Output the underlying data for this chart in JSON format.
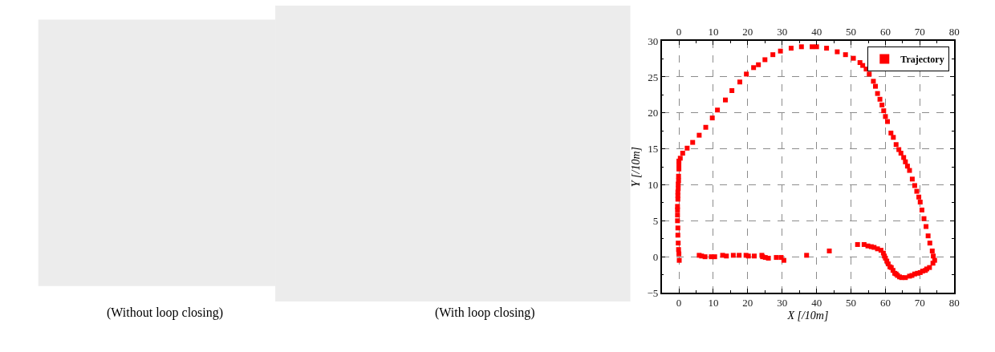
{
  "chart_data": [
    {
      "type": "other",
      "annotations": [
        "(Without loop closing)"
      ]
    },
    {
      "type": "other",
      "annotations": [
        "(With loop closing)"
      ]
    },
    {
      "type": "scatter",
      "xlabel": "X [/10m]",
      "ylabel": "Y [/10m]",
      "xlim": [
        -5,
        80
      ],
      "xticks": [
        0,
        {
          "value": 5,
          "label": null
        },
        10,
        {
          "value": 15,
          "label": null
        },
        20,
        {
          "value": 25,
          "label": null
        },
        30,
        {
          "value": 35,
          "label": null
        },
        40,
        {
          "value": 45,
          "label": null
        },
        50,
        {
          "value": 55,
          "label": null
        },
        60,
        {
          "value": 65,
          "label": null
        },
        70,
        {
          "value": 75,
          "label": null
        },
        80
      ],
      "x2lim": [
        -5,
        80
      ],
      "x2ticks": [
        0,
        {
          "value": 5,
          "label": null
        },
        10,
        {
          "value": 15,
          "label": null
        },
        20,
        {
          "value": 25,
          "label": null
        },
        30,
        {
          "value": 35,
          "label": null
        },
        40,
        {
          "value": 45,
          "label": null
        },
        50,
        {
          "value": 55,
          "label": null
        },
        60,
        {
          "value": 65,
          "label": null
        },
        70,
        {
          "value": 75,
          "label": null
        },
        80
      ],
      "ylim": [
        -5,
        30
      ],
      "yticks": [
        {
          "value": -5,
          "label": "−5"
        },
        {
          "value": -2.5,
          "label": null
        },
        0,
        {
          "value": 2.5,
          "label": null
        },
        5,
        {
          "value": 7.5,
          "label": null
        },
        10,
        {
          "value": 12.5,
          "label": null
        },
        15,
        {
          "value": 17.5,
          "label": null
        },
        20,
        {
          "value": 22.5,
          "label": null
        },
        25,
        {
          "value": 27.5,
          "label": null
        },
        30
      ],
      "grid": true,
      "legend": "top right",
      "marker": "square",
      "series": [
        {
          "name": "Trajectory",
          "color": "#ff0000",
          "x": [
            0.1,
            0,
            -0.1,
            -0.2,
            -0.3,
            -0.3,
            -0.4,
            -0.4,
            -0.4,
            -0.4,
            -0.3,
            -0.3,
            -0.3,
            -0.2,
            -0.2,
            -0.1,
            -0.1,
            0,
            0,
            0,
            0.4,
            1.1,
            2.4,
            4.0,
            5.9,
            7.8,
            9.7,
            11.2,
            13.5,
            15.4,
            17.7,
            19.6,
            21.7,
            23.1,
            25.0,
            27.3,
            29.5,
            32.6,
            35.6,
            38.7,
            40.0,
            42.9,
            46.0,
            48.4,
            50.7,
            52.6,
            53.4,
            54.4,
            55.3,
            56.5,
            57.1,
            57.7,
            58.4,
            59.0,
            59.5,
            60.0,
            60.6,
            61.6,
            62.3,
            63.1,
            63.9,
            64.5,
            65.3,
            65.8,
            66.4,
            67.0,
            67.8,
            68.5,
            69.1,
            69.7,
            70.1,
            70.6,
            71.2,
            71.8,
            72.4,
            72.9,
            73.6,
            73.9,
            74.3,
            73.8,
            72.8,
            72.0,
            71.6,
            70.8,
            70.1,
            69.3,
            68.5,
            67.7,
            67.0,
            65.8,
            64.7,
            64.1,
            63.5,
            63.1,
            62.7,
            62.2,
            61.7,
            61.3,
            60.8,
            60.4,
            60.0,
            59.7,
            59.4,
            58.7,
            57.7,
            56.7,
            55.9,
            54.9,
            53.8,
            51.9,
            43.7,
            37.1,
            30.5,
            29.7,
            28.3,
            26.0,
            25.1,
            24.3,
            24.1,
            21.9,
            20.2,
            19.5,
            17.5,
            15.8,
            13.8,
            12.7,
            10.4,
            9.4,
            7.6,
            6.6,
            5.9
          ],
          "values": [
            -0.5,
            0.4,
            1.0,
            1.9,
            3.0,
            4.0,
            5.0,
            5.8,
            6.5,
            7.0,
            8.0,
            8.5,
            9.0,
            9.5,
            10.1,
            10.6,
            11.2,
            12.2,
            12.8,
            13.3,
            13.7,
            14.4,
            15.1,
            15.9,
            16.9,
            18.0,
            19.3,
            20.4,
            21.8,
            23.1,
            24.3,
            25.4,
            26.3,
            26.7,
            27.4,
            28.1,
            28.6,
            29.0,
            29.2,
            29.2,
            29.2,
            29.0,
            28.5,
            28.1,
            27.6,
            27.0,
            26.6,
            26.1,
            25.4,
            24.4,
            23.7,
            22.7,
            21.9,
            21.1,
            20.3,
            19.5,
            18.8,
            17.2,
            16.6,
            15.6,
            14.9,
            14.4,
            13.8,
            13.2,
            12.6,
            12.0,
            10.8,
            9.9,
            9.1,
            8.3,
            7.6,
            6.5,
            5.3,
            4.2,
            2.9,
            1.9,
            0.8,
            0.1,
            -0.5,
            -0.9,
            -1.5,
            -1.7,
            -1.9,
            -2.0,
            -2.2,
            -2.3,
            -2.4,
            -2.6,
            -2.7,
            -2.9,
            -2.9,
            -2.8,
            -2.6,
            -2.4,
            -2.3,
            -1.9,
            -1.5,
            -1.4,
            -1.0,
            -0.6,
            -0.2,
            0.1,
            0.5,
            0.9,
            1.1,
            1.3,
            1.4,
            1.5,
            1.7,
            1.7,
            0.8,
            0.2,
            -0.5,
            -0.1,
            -0.1,
            -0.2,
            -0.1,
            0,
            0.2,
            0.1,
            0.1,
            0.2,
            0.2,
            0.2,
            0.1,
            0.2,
            0,
            0,
            0,
            0.1,
            0.2
          ]
        }
      ]
    }
  ]
}
